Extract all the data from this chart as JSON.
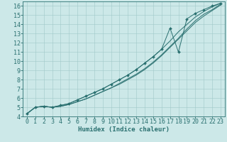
{
  "xlabel": "Humidex (Indice chaleur)",
  "xlim": [
    -0.5,
    23.5
  ],
  "ylim": [
    4,
    16.5
  ],
  "xticks": [
    0,
    1,
    2,
    3,
    4,
    5,
    6,
    7,
    8,
    9,
    10,
    11,
    12,
    13,
    14,
    15,
    16,
    17,
    18,
    19,
    20,
    21,
    22,
    23
  ],
  "yticks": [
    4,
    5,
    6,
    7,
    8,
    9,
    10,
    11,
    12,
    13,
    14,
    15,
    16
  ],
  "background_color": "#cce8e8",
  "line_color": "#2a7070",
  "grid_color": "#a0c8c8",
  "series": [
    [
      4.3,
      5.0,
      5.1,
      5.0,
      5.1,
      5.3,
      5.6,
      5.9,
      6.3,
      6.7,
      7.1,
      7.6,
      8.1,
      8.6,
      9.2,
      9.9,
      10.7,
      11.6,
      12.5,
      13.5,
      14.4,
      15.1,
      15.6,
      16.2
    ],
    [
      4.3,
      5.0,
      5.1,
      5.0,
      5.1,
      5.3,
      5.6,
      5.9,
      6.3,
      6.7,
      7.1,
      7.5,
      8.0,
      8.5,
      9.1,
      9.8,
      10.6,
      11.5,
      12.4,
      13.3,
      14.2,
      14.9,
      15.5,
      16.1
    ],
    [
      4.3,
      5.0,
      5.1,
      5.0,
      5.2,
      5.4,
      5.8,
      6.2,
      6.6,
      7.0,
      7.5,
      8.0,
      8.5,
      9.1,
      9.8,
      10.5,
      11.3,
      13.6,
      11.0,
      14.6,
      15.2,
      15.6,
      16.0,
      16.3
    ],
    [
      4.3,
      5.0,
      5.1,
      5.0,
      5.2,
      5.4,
      5.8,
      6.2,
      6.6,
      7.0,
      7.5,
      8.0,
      8.5,
      9.1,
      9.8,
      10.5,
      11.3,
      12.2,
      13.2,
      14.0,
      14.8,
      15.4,
      15.9,
      16.3
    ]
  ],
  "marker_series_index": 2,
  "font_size": 6.5,
  "tick_font_size": 6,
  "figwidth": 3.2,
  "figheight": 2.0,
  "dpi": 100
}
